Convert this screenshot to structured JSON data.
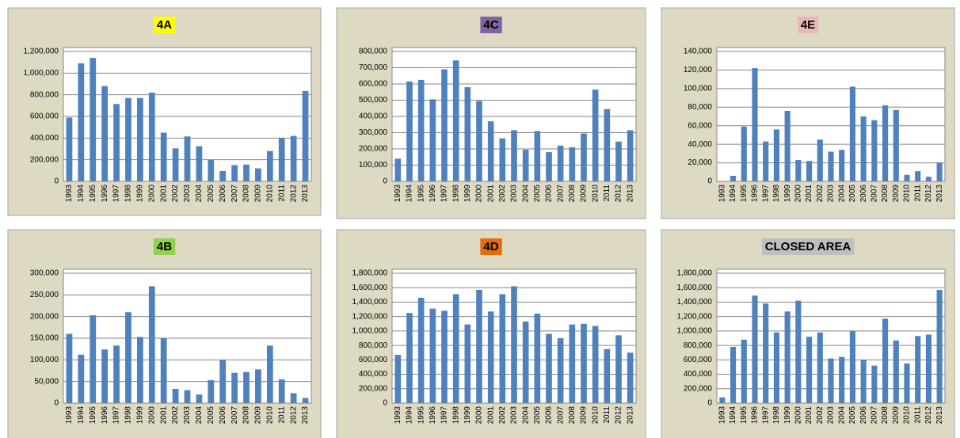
{
  "chart_data": [
    {
      "type": "bar",
      "title": "4A",
      "highlight": "#ffff00",
      "color": "#4f81bd",
      "categories": [
        "1993",
        "1994",
        "1995",
        "1996",
        "1997",
        "1998",
        "1999",
        "2000",
        "2001",
        "2002",
        "2003",
        "2004",
        "2005",
        "2006",
        "2007",
        "2008",
        "2009",
        "2010",
        "2011",
        "2012",
        "2013"
      ],
      "values": [
        590000,
        1090000,
        1140000,
        880000,
        715000,
        770000,
        770000,
        820000,
        450000,
        305000,
        415000,
        325000,
        200000,
        95000,
        150000,
        155000,
        120000,
        280000,
        400000,
        420000,
        835000
      ],
      "ylim": [
        0,
        1200000
      ],
      "yticks": [
        0,
        {
          "value": 200000,
          "label": "200,000"
        },
        {
          "value": 400000,
          "label": "400,000"
        },
        {
          "value": 600000,
          "label": "600,000"
        },
        {
          "value": 800000,
          "label": "800,000"
        },
        {
          "value": 1000000,
          "label": "1,000,000"
        },
        {
          "value": 1200000,
          "label": "1,200,000"
        }
      ],
      "grid": true
    },
    {
      "type": "bar",
      "title": "4C",
      "highlight": "#8064a2",
      "color": "#4f81bd",
      "categories": [
        "1993",
        "1994",
        "1995",
        "1996",
        "1997",
        "1998",
        "1999",
        "2000",
        "2001",
        "2002",
        "2003",
        "2004",
        "2005",
        "2006",
        "2007",
        "2008",
        "2009",
        "2010",
        "2011",
        "2012",
        "2013"
      ],
      "values": [
        140000,
        615000,
        625000,
        505000,
        690000,
        745000,
        580000,
        495000,
        370000,
        265000,
        315000,
        195000,
        310000,
        180000,
        220000,
        210000,
        295000,
        565000,
        445000,
        245000,
        315000
      ],
      "ylim": [
        0,
        800000
      ],
      "yticks": [
        0,
        {
          "value": 100000,
          "label": "100,000"
        },
        {
          "value": 200000,
          "label": "200,000"
        },
        {
          "value": 300000,
          "label": "300,000"
        },
        {
          "value": 400000,
          "label": "400,000"
        },
        {
          "value": 500000,
          "label": "500,000"
        },
        {
          "value": 600000,
          "label": "600,000"
        },
        {
          "value": 700000,
          "label": "700,000"
        },
        {
          "value": 800000,
          "label": "800,000"
        }
      ],
      "grid": true
    },
    {
      "type": "bar",
      "title": "4E",
      "highlight": "#e6b9b8",
      "color": "#4f81bd",
      "categories": [
        "1993",
        "1994",
        "1995",
        "1996",
        "1997",
        "1998",
        "1999",
        "2000",
        "2001",
        "2002",
        "2003",
        "2004",
        "2005",
        "2006",
        "2007",
        "2008",
        "2009",
        "2010",
        "2011",
        "2012",
        "2013"
      ],
      "values": [
        0,
        6000,
        59000,
        122000,
        43000,
        56000,
        76000,
        23000,
        22000,
        45000,
        32000,
        34000,
        102000,
        70000,
        66000,
        82000,
        77000,
        7000,
        11000,
        5000,
        20000
      ],
      "ylim": [
        0,
        140000
      ],
      "yticks": [
        0,
        {
          "value": 20000,
          "label": "20,000"
        },
        {
          "value": 40000,
          "label": "40,000"
        },
        {
          "value": 60000,
          "label": "60,000"
        },
        {
          "value": 80000,
          "label": "80,000"
        },
        {
          "value": 100000,
          "label": "100,000"
        },
        {
          "value": 120000,
          "label": "120,000"
        },
        {
          "value": 140000,
          "label": "140,000"
        }
      ],
      "grid": true
    },
    {
      "type": "bar",
      "title": "4B",
      "highlight": "#92d050",
      "color": "#4f81bd",
      "categories": [
        "1993",
        "1994",
        "1995",
        "1996",
        "1997",
        "1998",
        "1999",
        "2000",
        "2001",
        "2002",
        "2003",
        "2004",
        "2005",
        "2006",
        "2007",
        "2008",
        "2009",
        "2010",
        "2011",
        "2012",
        "2013"
      ],
      "values": [
        160000,
        112000,
        203000,
        124000,
        133000,
        210000,
        153000,
        270000,
        150000,
        33000,
        30000,
        20000,
        53000,
        100000,
        70000,
        72000,
        78000,
        133000,
        55000,
        23000,
        12000
      ],
      "ylim": [
        0,
        300000
      ],
      "yticks": [
        0,
        {
          "value": 50000,
          "label": "50,000"
        },
        {
          "value": 100000,
          "label": "100,000"
        },
        {
          "value": 150000,
          "label": "150,000"
        },
        {
          "value": 200000,
          "label": "200,000"
        },
        {
          "value": 250000,
          "label": "250,000"
        },
        {
          "value": 300000,
          "label": "300,000"
        }
      ],
      "grid": true
    },
    {
      "type": "bar",
      "title": "4D",
      "highlight": "#e46c0a",
      "color": "#4f81bd",
      "categories": [
        "1993",
        "1994",
        "1995",
        "1996",
        "1997",
        "1998",
        "1999",
        "2000",
        "2001",
        "2002",
        "2003",
        "2004",
        "2005",
        "2006",
        "2007",
        "2008",
        "2009",
        "2010",
        "2011",
        "2012",
        "2013"
      ],
      "values": [
        670000,
        1250000,
        1460000,
        1310000,
        1280000,
        1510000,
        1090000,
        1570000,
        1270000,
        1510000,
        1620000,
        1130000,
        1240000,
        960000,
        900000,
        1090000,
        1100000,
        1070000,
        750000,
        940000,
        700000
      ],
      "ylim": [
        0,
        1800000
      ],
      "yticks": [
        0,
        {
          "value": 200000,
          "label": "200,000"
        },
        {
          "value": 400000,
          "label": "400,000"
        },
        {
          "value": 600000,
          "label": "600,000"
        },
        {
          "value": 800000,
          "label": "800,000"
        },
        {
          "value": 1000000,
          "label": "1,000,000"
        },
        {
          "value": 1200000,
          "label": "1,200,000"
        },
        {
          "value": 1400000,
          "label": "1,400,000"
        },
        {
          "value": 1600000,
          "label": "1,600,000"
        },
        {
          "value": 1800000,
          "label": "1,800,000"
        }
      ],
      "grid": true
    },
    {
      "type": "bar",
      "title": "CLOSED AREA",
      "highlight": "#bfbfbf",
      "color": "#4f81bd",
      "categories": [
        "1993",
        "1994",
        "1995",
        "1996",
        "1997",
        "1998",
        "1999",
        "2000",
        "2001",
        "2002",
        "2003",
        "2004",
        "2005",
        "2006",
        "2007",
        "2008",
        "2009",
        "2010",
        "2011",
        "2012",
        "2013"
      ],
      "values": [
        80000,
        780000,
        880000,
        1490000,
        1380000,
        980000,
        1270000,
        1420000,
        920000,
        980000,
        620000,
        640000,
        1000000,
        600000,
        520000,
        1170000,
        870000,
        550000,
        930000,
        950000,
        1570000
      ],
      "ylim": [
        0,
        1800000
      ],
      "yticks": [
        0,
        {
          "value": 200000,
          "label": "200,000"
        },
        {
          "value": 400000,
          "label": "400,000"
        },
        {
          "value": 600000,
          "label": "600,000"
        },
        {
          "value": 800000,
          "label": "800,000"
        },
        {
          "value": 1000000,
          "label": "1,000,000"
        },
        {
          "value": 1200000,
          "label": "1,200,000"
        },
        {
          "value": 1400000,
          "label": "1,400,000"
        },
        {
          "value": 1600000,
          "label": "1,600,000"
        },
        {
          "value": 1800000,
          "label": "1,800,000"
        }
      ],
      "grid": true
    }
  ]
}
